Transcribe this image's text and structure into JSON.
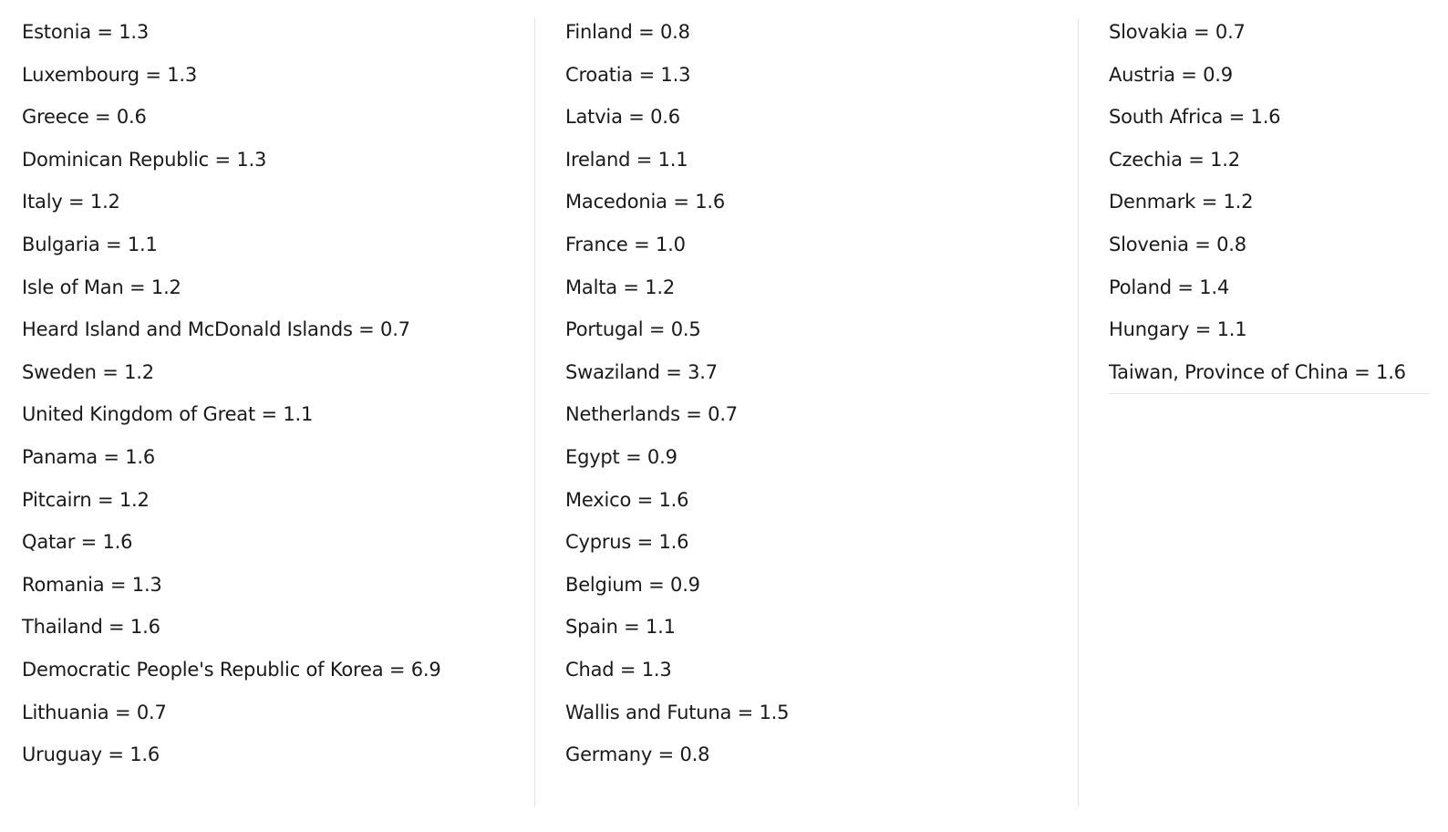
{
  "columns": [
    {
      "entries": [
        "Estonia = 1.3",
        "Luxembourg = 1.3",
        "Greece = 0.6",
        "Dominican Republic = 1.3",
        "Italy = 1.2",
        "Bulgaria = 1.1",
        "Isle of Man = 1.2",
        "Heard Island and McDonald Islands = 0.7",
        "Sweden = 1.2",
        "United Kingdom of Great = 1.1",
        "Panama = 1.6",
        "Pitcairn = 1.2",
        "Qatar = 1.6",
        "Romania = 1.3",
        "Thailand = 1.6",
        "Democratic People's Republic of Korea = 6.9",
        "Lithuania = 0.7",
        "Uruguay = 1.6"
      ]
    },
    {
      "entries": [
        "Finland = 0.8",
        "Croatia = 1.3",
        "Latvia = 0.6",
        "Ireland = 1.1",
        "Macedonia = 1.6",
        "France = 1.0",
        "Malta = 1.2",
        "Portugal = 0.5",
        "Swaziland = 3.7",
        "Netherlands = 0.7",
        "Egypt = 0.9",
        "Mexico = 1.6",
        "Cyprus = 1.6",
        "Belgium = 0.9",
        "Spain = 1.1",
        "Chad = 1.3",
        "Wallis and Futuna = 1.5",
        "Germany = 0.8"
      ]
    },
    {
      "entries": [
        "Slovakia = 0.7",
        "Austria = 0.9",
        "South Africa = 1.6",
        "Czechia = 1.2",
        "Denmark = 1.2",
        "Slovenia = 0.8",
        "Poland = 1.4",
        "Hungary = 1.1",
        "Taiwan, Province of China = 1.6"
      ]
    }
  ]
}
